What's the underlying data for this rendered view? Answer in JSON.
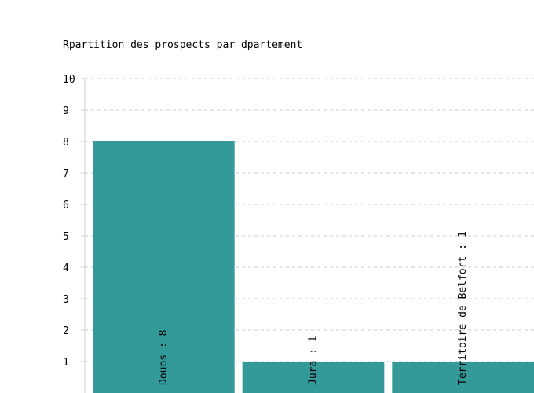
{
  "chart_data": {
    "type": "bar",
    "title": "Rpartition des prospects par dpartement",
    "xlabel": "",
    "ylabel": "",
    "categories": [
      "Doubs",
      "Jura",
      "Territoire de Belfort"
    ],
    "values": [
      8,
      1,
      1
    ],
    "bar_labels": [
      "Doubs : 8",
      "Jura : 1",
      "Territoire de Belfort : 1"
    ],
    "ylim": [
      0,
      10
    ],
    "y_ticks": [
      "1",
      "2",
      "3",
      "4",
      "5",
      "6",
      "7",
      "8",
      "9",
      "10"
    ],
    "grid": true,
    "legend": "none",
    "colors": {
      "bar": "#339a99",
      "grid": "#cccccc",
      "axis": "#cccccc"
    }
  }
}
